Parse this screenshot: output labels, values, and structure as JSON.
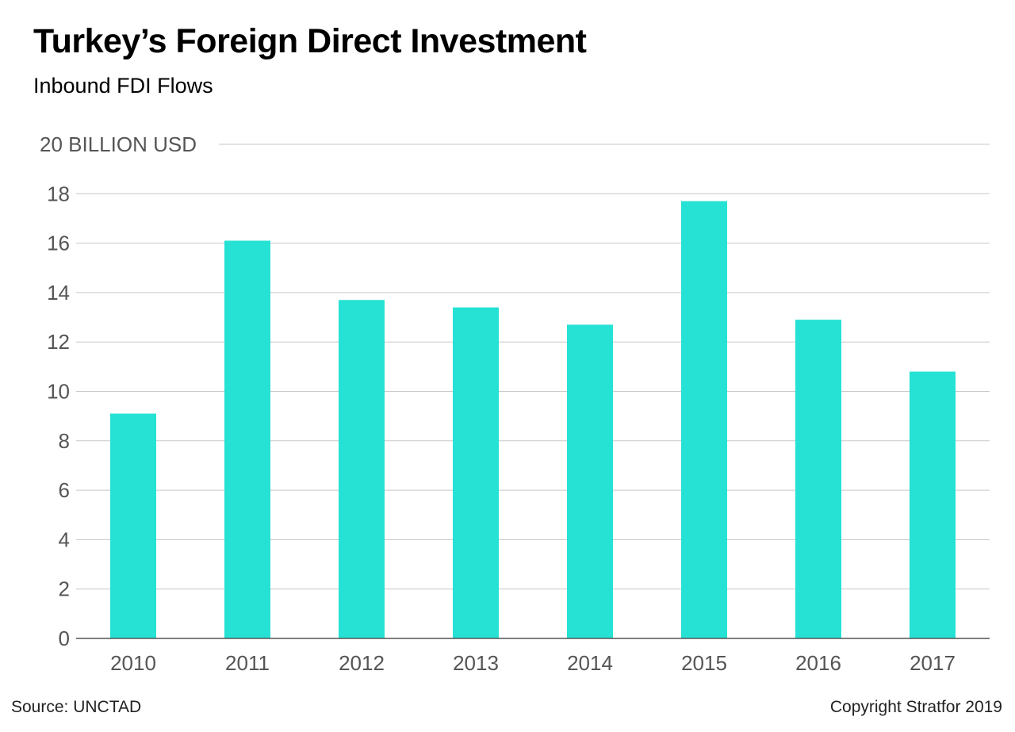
{
  "header": {
    "title": "Turkey’s Foreign Direct Investment",
    "subtitle": "Inbound FDI Flows"
  },
  "footer": {
    "source": "Source: UNCTAD",
    "copyright": "Copyright Stratfor 2019"
  },
  "chart_data": {
    "type": "bar",
    "title": "Turkey’s Foreign Direct Investment",
    "subtitle": "Inbound FDI Flows",
    "categories": [
      "2010",
      "2011",
      "2012",
      "2013",
      "2014",
      "2015",
      "2016",
      "2017"
    ],
    "values": [
      9.1,
      16.1,
      13.7,
      13.4,
      12.7,
      17.7,
      12.9,
      10.8
    ],
    "ylim": [
      0,
      20
    ],
    "yticks": [
      0,
      2,
      4,
      6,
      8,
      10,
      12,
      14,
      16,
      18,
      20
    ],
    "ytick_labels": [
      "0",
      "2",
      "4",
      "6",
      "8",
      "10",
      "12",
      "14",
      "16",
      "18",
      "20 BILLION USD"
    ],
    "grid": true,
    "colors": {
      "bar": "#25e2d4",
      "grid": "#c8c8c8",
      "axis": "#555555"
    }
  }
}
